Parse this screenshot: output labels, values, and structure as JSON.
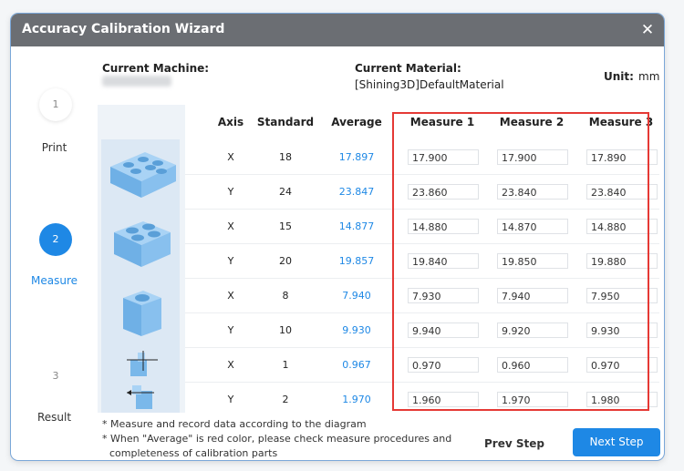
{
  "window": {
    "title": "Accuracy Calibration Wizard",
    "close_glyph": "✕"
  },
  "info": {
    "machine_label": "Current Machine:",
    "material_label": "Current Material:",
    "material_value": "[Shining3D]DefaultMaterial",
    "unit_label": "Unit:",
    "unit_value": "mm"
  },
  "steps": [
    {
      "number": "1",
      "label": "Print",
      "state": "inactive"
    },
    {
      "number": "2",
      "label": "Measure",
      "state": "active"
    },
    {
      "number": "3",
      "label": "Result",
      "state": "inactive"
    }
  ],
  "table": {
    "headers": [
      "Axis",
      "Standard",
      "Average",
      "Measure 1",
      "Measure 2",
      "Measure 3"
    ],
    "rows": [
      {
        "axis": "X",
        "standard": "18",
        "average": "17.897",
        "m1": "17.900",
        "m2": "17.900",
        "m3": "17.890"
      },
      {
        "axis": "Y",
        "standard": "24",
        "average": "23.847",
        "m1": "23.860",
        "m2": "23.840",
        "m3": "23.840"
      },
      {
        "axis": "X",
        "standard": "15",
        "average": "14.877",
        "m1": "14.880",
        "m2": "14.870",
        "m3": "14.880"
      },
      {
        "axis": "Y",
        "standard": "20",
        "average": "19.857",
        "m1": "19.840",
        "m2": "19.850",
        "m3": "19.880"
      },
      {
        "axis": "X",
        "standard": "8",
        "average": "7.940",
        "m1": "7.930",
        "m2": "7.940",
        "m3": "7.950"
      },
      {
        "axis": "Y",
        "standard": "10",
        "average": "9.930",
        "m1": "9.940",
        "m2": "9.920",
        "m3": "9.930"
      },
      {
        "axis": "X",
        "standard": "1",
        "average": "0.967",
        "m1": "0.970",
        "m2": "0.960",
        "m3": "0.970"
      },
      {
        "axis": "Y",
        "standard": "2",
        "average": "1.970",
        "m1": "1.960",
        "m2": "1.970",
        "m3": "1.980"
      }
    ]
  },
  "notes": [
    "* Measure and record data according to the diagram",
    "* When \"Average\" is red color, please check measure procedures and",
    "completeness of calibration parts"
  ],
  "buttons": {
    "prev": "Prev Step",
    "next": "Next Step"
  },
  "colors": {
    "accent": "#1e88e5",
    "title_bar": "#6b6e73",
    "highlight_border": "#e53935",
    "part": "#8fc3ef"
  },
  "icons": {
    "close": "close-icon"
  }
}
